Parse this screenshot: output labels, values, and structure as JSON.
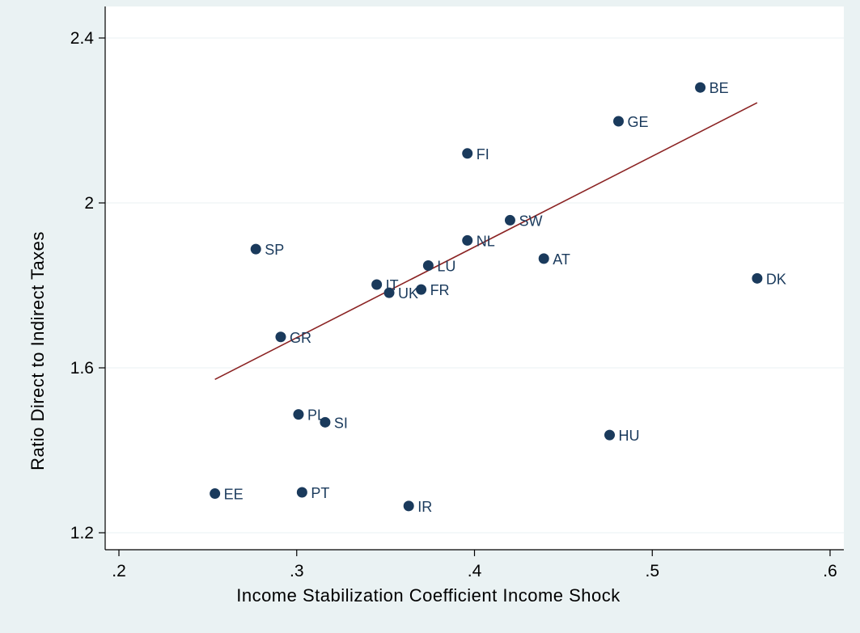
{
  "chart_data": {
    "type": "scatter",
    "title": "",
    "xlabel": "Income Stabilization Coefficient Income Shock",
    "ylabel": "Ratio Direct to Indirect Taxes",
    "xlim": [
      0.2,
      0.6
    ],
    "ylim": [
      1.2,
      2.4
    ],
    "x_ticks": [
      0.2,
      0.3,
      0.4,
      0.5,
      0.6
    ],
    "x_tick_labels": [
      ".2",
      ".3",
      ".4",
      ".5",
      ".6"
    ],
    "y_ticks": [
      1.2,
      1.6,
      2.0,
      2.4
    ],
    "y_tick_labels": [
      "1.2",
      "1.6",
      "2",
      "2.4"
    ],
    "grid": true,
    "points": [
      {
        "label": "BE",
        "x": 0.527,
        "y": 2.28
      },
      {
        "label": "GE",
        "x": 0.481,
        "y": 2.198
      },
      {
        "label": "FI",
        "x": 0.396,
        "y": 2.12
      },
      {
        "label": "SW",
        "x": 0.42,
        "y": 1.958
      },
      {
        "label": "NL",
        "x": 0.396,
        "y": 1.909
      },
      {
        "label": "SP",
        "x": 0.277,
        "y": 1.888
      },
      {
        "label": "AT",
        "x": 0.439,
        "y": 1.865
      },
      {
        "label": "LU",
        "x": 0.374,
        "y": 1.848
      },
      {
        "label": "DK",
        "x": 0.559,
        "y": 1.817
      },
      {
        "label": "IT",
        "x": 0.345,
        "y": 1.802
      },
      {
        "label": "FR",
        "x": 0.37,
        "y": 1.79
      },
      {
        "label": "UK",
        "x": 0.352,
        "y": 1.782
      },
      {
        "label": "GR",
        "x": 0.291,
        "y": 1.675
      },
      {
        "label": "PL",
        "x": 0.301,
        "y": 1.487
      },
      {
        "label": "SI",
        "x": 0.316,
        "y": 1.468
      },
      {
        "label": "HU",
        "x": 0.476,
        "y": 1.437
      },
      {
        "label": "EE",
        "x": 0.254,
        "y": 1.295
      },
      {
        "label": "PT",
        "x": 0.303,
        "y": 1.298
      },
      {
        "label": "IR",
        "x": 0.363,
        "y": 1.265
      }
    ],
    "fit_line": {
      "x": [
        0.254,
        0.559
      ],
      "y": [
        1.572,
        2.243
      ]
    },
    "colors": {
      "background": "#eaf2f3",
      "plot_area": "#ffffff",
      "marker": "#1a3a5c",
      "fit_line": "#8b2323"
    }
  }
}
